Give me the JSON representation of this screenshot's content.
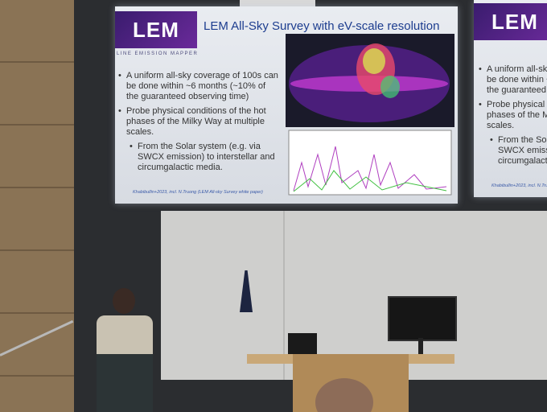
{
  "slide": {
    "logo": "LEM",
    "logo_caption": "LINE EMISSION MAPPER",
    "title": "LEM All-Sky Survey with eV-scale resolution",
    "bullets": [
      "A uniform all-sky coverage of 100s can be done within ~6 months (~10% of the guaranteed observing time)",
      "Probe physical conditions of the hot phases of the Milky Way at multiple scales."
    ],
    "sub_bullet": "From the Solar system (e.g. via SWCX emission) to interstellar and circumgalactic media.",
    "citation": "Khabibullin+2023, incl. N.Truong (LEM All-sky Survey white paper)"
  }
}
